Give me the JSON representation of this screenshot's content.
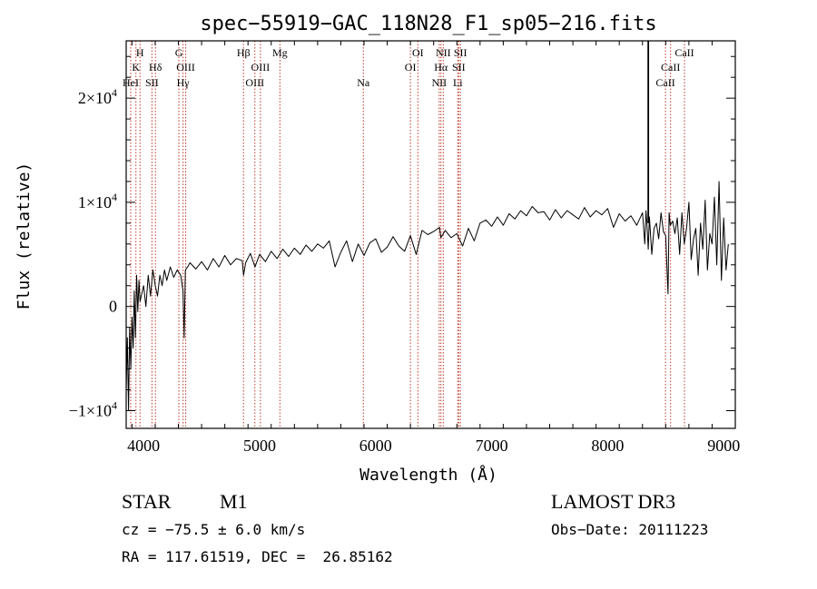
{
  "chart_data": {
    "type": "line",
    "title": "spec−55919−GAC_118N28_F1_sp05−216.fits",
    "xlabel": "Wavelength (Å)",
    "ylabel": "Flux (relative)",
    "xlim": [
      3850,
      9100
    ],
    "ylim": [
      -11700,
      25500
    ],
    "x_ticks": [
      {
        "value": 4000,
        "label": "4000"
      },
      {
        "value": 5000,
        "label": "5000"
      },
      {
        "value": 6000,
        "label": "6000"
      },
      {
        "value": 7000,
        "label": "7000"
      },
      {
        "value": 8000,
        "label": "8000"
      },
      {
        "value": 9000,
        "label": "9000"
      }
    ],
    "y_ticks": [
      {
        "value": -10000,
        "label": "−1×10",
        "exp": "4"
      },
      {
        "value": 0,
        "label": "0",
        "exp": ""
      },
      {
        "value": 10000,
        "label": "1×10",
        "exp": "4"
      },
      {
        "value": 20000,
        "label": "2×10",
        "exp": "4"
      }
    ],
    "series": [
      {
        "name": "spectrum",
        "x": [
          3850,
          3860,
          3870,
          3880,
          3890,
          3900,
          3910,
          3920,
          3930,
          3940,
          3950,
          3960,
          3970,
          3980,
          4000,
          4020,
          4040,
          4060,
          4080,
          4100,
          4120,
          4140,
          4160,
          4180,
          4200,
          4230,
          4260,
          4290,
          4320,
          4340,
          4350,
          4360,
          4380,
          4400,
          4450,
          4500,
          4550,
          4600,
          4650,
          4700,
          4750,
          4800,
          4850,
          4862,
          4880,
          4920,
          4960,
          5000,
          5050,
          5100,
          5150,
          5200,
          5250,
          5300,
          5350,
          5400,
          5450,
          5500,
          5550,
          5600,
          5650,
          5700,
          5750,
          5800,
          5850,
          5900,
          5950,
          6000,
          6050,
          6100,
          6150,
          6200,
          6250,
          6300,
          6350,
          6400,
          6450,
          6500,
          6550,
          6563,
          6600,
          6650,
          6700,
          6750,
          6800,
          6850,
          6900,
          6950,
          7000,
          7050,
          7100,
          7150,
          7200,
          7250,
          7300,
          7350,
          7400,
          7450,
          7500,
          7550,
          7600,
          7650,
          7700,
          7750,
          7800,
          7850,
          7900,
          7950,
          8000,
          8050,
          8100,
          8150,
          8200,
          8250,
          8300,
          8320,
          8330,
          8340,
          8350,
          8360,
          8380,
          8400,
          8420,
          8440,
          8460,
          8480,
          8500,
          8520,
          8530,
          8540,
          8560,
          8580,
          8600,
          8620,
          8640,
          8660,
          8680,
          8700,
          8720,
          8740,
          8760,
          8780,
          8800,
          8820,
          8840,
          8860,
          8880,
          8900,
          8920,
          8940,
          8960,
          8980,
          9000,
          9020,
          9040
        ],
        "y": [
          -8000,
          -3000,
          -10000,
          -2000,
          -6000,
          -1000,
          -4000,
          1500,
          -3000,
          3000,
          -500,
          2500,
          500,
          1000,
          2000,
          0,
          3000,
          1000,
          3500,
          2000,
          1000,
          3000,
          2000,
          3500,
          2500,
          3800,
          2800,
          3500,
          3000,
          1500,
          -3000,
          3500,
          3800,
          4200,
          3600,
          4300,
          3500,
          4600,
          3800,
          4900,
          4000,
          4600,
          4400,
          3000,
          4200,
          5100,
          3800,
          5000,
          4300,
          5300,
          4600,
          5500,
          4800,
          5600,
          5000,
          5900,
          5300,
          6000,
          5600,
          6300,
          3800,
          5200,
          6300,
          4300,
          6000,
          4900,
          6100,
          6500,
          5200,
          5700,
          6700,
          5800,
          5300,
          6800,
          5000,
          7300,
          6900,
          7200,
          7600,
          6600,
          7300,
          6600,
          7000,
          5800,
          7500,
          6300,
          8000,
          8300,
          7700,
          8600,
          7800,
          8900,
          8400,
          9200,
          8700,
          9600,
          9000,
          9100,
          8300,
          9300,
          8500,
          9200,
          8800,
          8400,
          9500,
          8600,
          9200,
          8800,
          9400,
          7600,
          8900,
          8200,
          8700,
          7800,
          9000,
          6000,
          9200,
          7600,
          5500,
          8600,
          5000,
          7500,
          8000,
          6500,
          9000,
          7200,
          6800,
          1200,
          9000,
          7800,
          8200,
          7000,
          8500,
          5000,
          9000,
          6000,
          7500,
          10000,
          4500,
          6500,
          7500,
          3000,
          8000,
          5500,
          10200,
          3500,
          7000,
          6000,
          10500,
          4000,
          12000,
          2500,
          8500,
          3500,
          6000
        ]
      }
    ],
    "spike": {
      "x": 8350,
      "y_top": 25500,
      "y_bottom": 8000
    },
    "emission_lines": [
      {
        "label": "H",
        "x": 3969,
        "row": 1
      },
      {
        "label": "K",
        "x": 3934,
        "row": 2
      },
      {
        "label": "HeI",
        "x": 3889,
        "row": 3
      },
      {
        "label": "SII",
        "x": 4072,
        "row": 3
      },
      {
        "label": "Hδ",
        "x": 4102,
        "row": 2
      },
      {
        "label": "G",
        "x": 4304,
        "row": 1
      },
      {
        "label": "OIII",
        "x": 4363,
        "row": 2
      },
      {
        "label": "Hγ",
        "x": 4340,
        "row": 3
      },
      {
        "label": "Hβ",
        "x": 4861,
        "row": 1
      },
      {
        "label": "OIII",
        "x": 5007,
        "row": 2
      },
      {
        "label": "OIII",
        "x": 4959,
        "row": 3
      },
      {
        "label": "Mg",
        "x": 5175,
        "row": 1
      },
      {
        "label": "Na",
        "x": 5894,
        "row": 3
      },
      {
        "label": "OI",
        "x": 6364,
        "row": 1
      },
      {
        "label": "OI",
        "x": 6300,
        "row": 2
      },
      {
        "label": "NII",
        "x": 6583,
        "row": 1
      },
      {
        "label": "Hα",
        "x": 6563,
        "row": 2
      },
      {
        "label": "NII",
        "x": 6548,
        "row": 3
      },
      {
        "label": "SII",
        "x": 6731,
        "row": 1
      },
      {
        "label": "SII",
        "x": 6716,
        "row": 2
      },
      {
        "label": "Li",
        "x": 6708,
        "row": 3
      },
      {
        "label": "CaII",
        "x": 8662,
        "row": 1
      },
      {
        "label": "CaII",
        "x": 8542,
        "row": 2
      },
      {
        "label": "CaII",
        "x": 8498,
        "row": 3
      }
    ],
    "line_color": "#000000",
    "marker_color": "#c0392b"
  },
  "info": {
    "class_label": "STAR",
    "subclass": "M1",
    "redshift": "cz = −75.5 ± 6.0 km/s",
    "coordinates": "RA = 117.61519, DEC =  26.85162",
    "survey": "LAMOST DR3",
    "obs_date": "Obs−Date: 20111223"
  }
}
